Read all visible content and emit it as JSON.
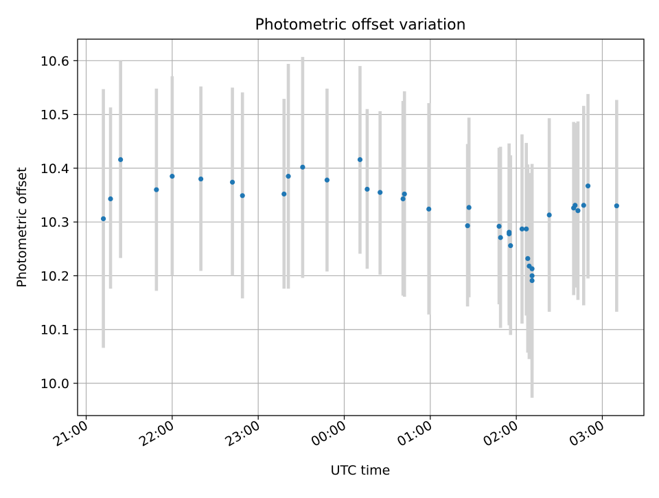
{
  "chart_data": {
    "type": "scatter",
    "title": "Photometric offset variation",
    "xlabel": "UTC time",
    "ylabel": "Photometric offset",
    "xlim": [
      "20:54",
      "03:29"
    ],
    "ylim": [
      9.94,
      10.64
    ],
    "grid": true,
    "x_ticks": [
      "21:00",
      "22:00",
      "23:00",
      "00:00",
      "01:00",
      "02:00",
      "03:00"
    ],
    "y_ticks": [
      "10.0",
      "10.1",
      "10.2",
      "10.3",
      "10.4",
      "10.5",
      "10.6"
    ],
    "point_color": "#1f77b4",
    "errorbar_color": "#d3d3d3",
    "points": [
      {
        "x": "21:12",
        "y": 10.306,
        "ylow": 10.066,
        "yhigh": 10.547
      },
      {
        "x": "21:17",
        "y": 10.343,
        "ylow": 10.176,
        "yhigh": 10.513
      },
      {
        "x": "21:24",
        "y": 10.416,
        "ylow": 10.233,
        "yhigh": 10.6
      },
      {
        "x": "21:49",
        "y": 10.36,
        "ylow": 10.172,
        "yhigh": 10.548
      },
      {
        "x": "22:00",
        "y": 10.385,
        "ylow": 10.2,
        "yhigh": 10.571
      },
      {
        "x": "22:20",
        "y": 10.38,
        "ylow": 10.209,
        "yhigh": 10.552
      },
      {
        "x": "22:42",
        "y": 10.374,
        "ylow": 10.2,
        "yhigh": 10.55
      },
      {
        "x": "22:49",
        "y": 10.349,
        "ylow": 10.158,
        "yhigh": 10.541
      },
      {
        "x": "23:18",
        "y": 10.352,
        "ylow": 10.176,
        "yhigh": 10.529
      },
      {
        "x": "23:21",
        "y": 10.385,
        "ylow": 10.176,
        "yhigh": 10.594
      },
      {
        "x": "23:31",
        "y": 10.402,
        "ylow": 10.196,
        "yhigh": 10.607
      },
      {
        "x": "23:48",
        "y": 10.378,
        "ylow": 10.208,
        "yhigh": 10.548
      },
      {
        "x": "00:11",
        "y": 10.416,
        "ylow": 10.241,
        "yhigh": 10.59
      },
      {
        "x": "00:16",
        "y": 10.361,
        "ylow": 10.213,
        "yhigh": 10.51
      },
      {
        "x": "00:25",
        "y": 10.355,
        "ylow": 10.202,
        "yhigh": 10.506
      },
      {
        "x": "00:41",
        "y": 10.343,
        "ylow": 10.163,
        "yhigh": 10.525
      },
      {
        "x": "00:42",
        "y": 10.352,
        "ylow": 10.161,
        "yhigh": 10.543
      },
      {
        "x": "00:59",
        "y": 10.324,
        "ylow": 10.128,
        "yhigh": 10.521
      },
      {
        "x": "01:26",
        "y": 10.293,
        "ylow": 10.143,
        "yhigh": 10.445
      },
      {
        "x": "01:27",
        "y": 10.327,
        "ylow": 10.16,
        "yhigh": 10.494
      },
      {
        "x": "01:48",
        "y": 10.292,
        "ylow": 10.147,
        "yhigh": 10.438
      },
      {
        "x": "01:49",
        "y": 10.271,
        "ylow": 10.103,
        "yhigh": 10.44
      },
      {
        "x": "01:55",
        "y": 10.281,
        "ylow": 10.115,
        "yhigh": 10.446
      },
      {
        "x": "01:55",
        "y": 10.278,
        "ylow": 10.108,
        "yhigh": 10.446
      },
      {
        "x": "01:56",
        "y": 10.256,
        "ylow": 10.09,
        "yhigh": 10.424
      },
      {
        "x": "02:04",
        "y": 10.287,
        "ylow": 10.111,
        "yhigh": 10.463
      },
      {
        "x": "02:07",
        "y": 10.287,
        "ylow": 10.126,
        "yhigh": 10.447
      },
      {
        "x": "02:08",
        "y": 10.232,
        "ylow": 10.057,
        "yhigh": 10.407
      },
      {
        "x": "02:09",
        "y": 10.218,
        "ylow": 10.045,
        "yhigh": 10.391
      },
      {
        "x": "02:11",
        "y": 10.2,
        "ylow": 9.973,
        "yhigh": 10.408
      },
      {
        "x": "02:11",
        "y": 10.191,
        "ylow": 10.025,
        "yhigh": 10.357
      },
      {
        "x": "02:11",
        "y": 10.213,
        "ylow": 10.048,
        "yhigh": 10.378
      },
      {
        "x": "02:23",
        "y": 10.313,
        "ylow": 10.133,
        "yhigh": 10.493
      },
      {
        "x": "02:40",
        "y": 10.326,
        "ylow": 10.164,
        "yhigh": 10.486
      },
      {
        "x": "02:41",
        "y": 10.331,
        "ylow": 10.178,
        "yhigh": 10.484
      },
      {
        "x": "02:43",
        "y": 10.321,
        "ylow": 10.155,
        "yhigh": 10.487
      },
      {
        "x": "02:47",
        "y": 10.331,
        "ylow": 10.145,
        "yhigh": 10.516
      },
      {
        "x": "02:50",
        "y": 10.367,
        "ylow": 10.195,
        "yhigh": 10.538
      },
      {
        "x": "03:10",
        "y": 10.33,
        "ylow": 10.133,
        "yhigh": 10.527
      }
    ]
  }
}
